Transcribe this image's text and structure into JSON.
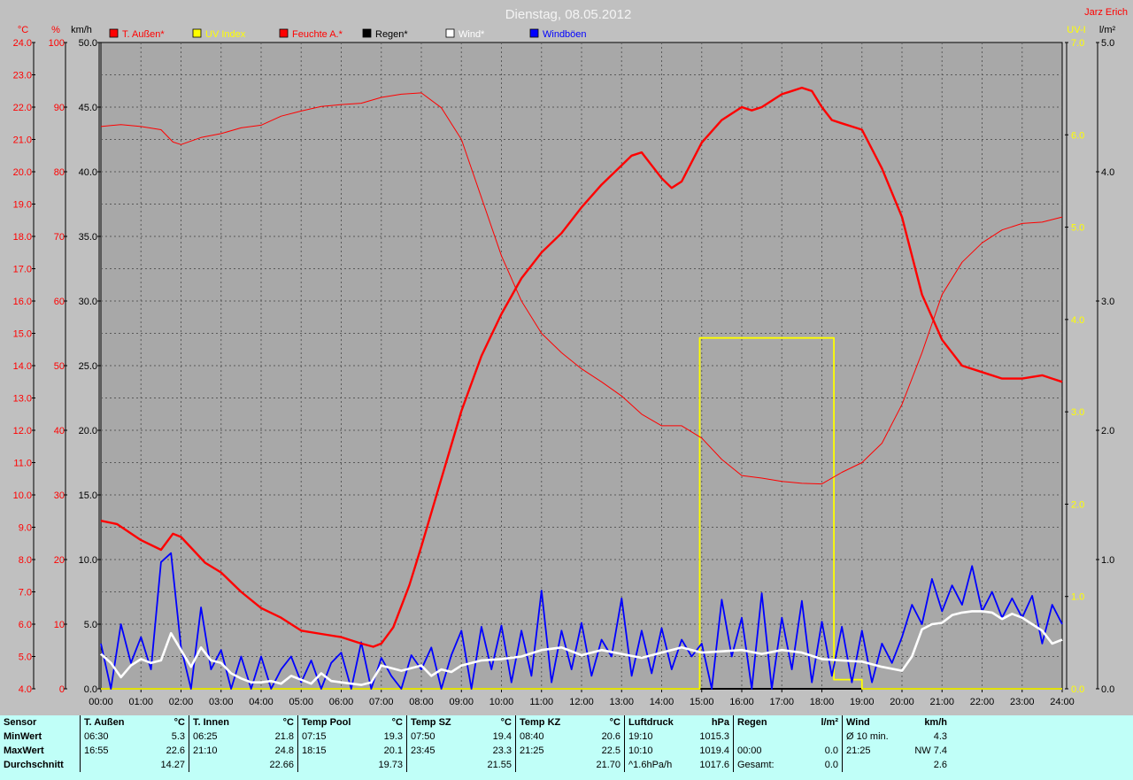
{
  "title": "Dienstag, 08.05.2012",
  "author": "Jarz Erich",
  "colors": {
    "background": "#c0c0c0",
    "plot_bg": "#a8a8a8",
    "red": "#ff0000",
    "yellow": "#ffff00",
    "blue": "#0000ff",
    "white": "#ffffff",
    "black": "#000000",
    "stats_bg": "#c0fff8"
  },
  "axes": {
    "temp": {
      "unit": "°C",
      "min": 4.0,
      "max": 24.0,
      "step": 1.0,
      "ticks": [
        "4.0",
        "5.0",
        "6.0",
        "7.0",
        "8.0",
        "9.0",
        "10.0",
        "11.0",
        "12.0",
        "13.0",
        "14.0",
        "15.0",
        "16.0",
        "17.0",
        "18.0",
        "19.0",
        "20.0",
        "21.0",
        "22.0",
        "23.0",
        "24.0"
      ]
    },
    "humidity": {
      "unit": "%",
      "min": 0,
      "max": 100,
      "step": 10,
      "ticks": [
        "0",
        "10",
        "20",
        "30",
        "40",
        "50",
        "60",
        "70",
        "80",
        "90",
        "100"
      ]
    },
    "wind": {
      "unit": "km/h",
      "min": 0,
      "max": 50,
      "step": 5,
      "ticks": [
        "0.0",
        "5.0",
        "10.0",
        "15.0",
        "20.0",
        "25.0",
        "30.0",
        "35.0",
        "40.0",
        "45.0",
        "50.0"
      ]
    },
    "uv": {
      "unit": "UV-I",
      "min": 0,
      "max": 7,
      "step": 1,
      "ticks": [
        "0.0",
        "1.0",
        "2.0",
        "3.0",
        "4.0",
        "5.0",
        "6.0",
        "7.0"
      ]
    },
    "rain": {
      "unit": "l/m²",
      "min": 0,
      "max": 5,
      "step": 1,
      "ticks": [
        "0.0",
        "1.0",
        "2.0",
        "3.0",
        "4.0",
        "5.0"
      ]
    },
    "time": {
      "ticks": [
        "00:00",
        "01:00",
        "02:00",
        "03:00",
        "04:00",
        "05:00",
        "06:00",
        "07:00",
        "08:00",
        "09:00",
        "10:00",
        "11:00",
        "12:00",
        "13:00",
        "14:00",
        "15:00",
        "16:00",
        "17:00",
        "18:00",
        "19:00",
        "20:00",
        "21:00",
        "22:00",
        "23:00",
        "24:00"
      ]
    }
  },
  "legend": [
    {
      "label": "T. Außen*",
      "color": "#ff0000"
    },
    {
      "label": "UV Index",
      "color": "#ffff00"
    },
    {
      "label": "Feuchte A.*",
      "color": "#ff0000"
    },
    {
      "label": "Regen*",
      "color": "#000000"
    },
    {
      "label": "Wind*",
      "color": "#ffffff"
    },
    {
      "label": "Windböen",
      "color": "#0000ff"
    }
  ],
  "chart_data": {
    "type": "line",
    "title": "Dienstag, 08.05.2012",
    "x_unit": "hour",
    "xlim": [
      0,
      24
    ],
    "series": [
      {
        "name": "T. Außen*",
        "axis": "temp",
        "color": "#ff0000",
        "x": [
          0,
          0.4,
          1.0,
          1.5,
          1.8,
          2.0,
          2.3,
          2.6,
          3.0,
          3.5,
          4.0,
          4.5,
          5.0,
          5.5,
          6.0,
          6.5,
          6.8,
          7.0,
          7.3,
          7.7,
          8.0,
          8.5,
          9.0,
          9.5,
          10.0,
          10.5,
          11.0,
          11.5,
          12.0,
          12.5,
          13.0,
          13.25,
          13.5,
          14.0,
          14.25,
          14.5,
          15.0,
          15.5,
          16.0,
          16.25,
          16.5,
          17.0,
          17.25,
          17.5,
          17.75,
          18.0,
          18.25,
          18.5,
          18.75,
          19.0,
          19.5,
          20.0,
          20.5,
          21.0,
          21.5,
          22.0,
          22.5,
          23.0,
          23.5,
          23.75,
          24.0
        ],
        "values": [
          9.2,
          9.1,
          8.6,
          8.3,
          8.8,
          8.7,
          8.3,
          7.9,
          7.6,
          7.0,
          6.5,
          6.2,
          5.8,
          5.7,
          5.6,
          5.4,
          5.3,
          5.4,
          5.9,
          7.2,
          8.4,
          10.5,
          12.6,
          14.3,
          15.6,
          16.7,
          17.5,
          18.1,
          18.9,
          19.6,
          20.2,
          20.5,
          20.6,
          19.8,
          19.5,
          19.7,
          20.9,
          21.6,
          22.0,
          21.9,
          22.0,
          22.4,
          22.5,
          22.6,
          22.5,
          22.0,
          21.6,
          21.5,
          21.4,
          21.3,
          20.1,
          18.6,
          16.2,
          14.8,
          14.0,
          13.8,
          13.6,
          13.6,
          13.7,
          13.6,
          13.5
        ]
      },
      {
        "name": "Feuchte A.*",
        "axis": "humidity",
        "color": "#ff0000",
        "x": [
          0,
          0.5,
          1.0,
          1.5,
          1.8,
          2.0,
          2.5,
          3.0,
          3.5,
          4.0,
          4.5,
          5.0,
          5.5,
          6.0,
          6.5,
          7.0,
          7.5,
          8.0,
          8.5,
          9.0,
          9.5,
          10.0,
          10.5,
          11.0,
          11.5,
          12.0,
          12.5,
          13.0,
          13.5,
          14.0,
          14.5,
          15.0,
          15.5,
          16.0,
          16.5,
          17.0,
          17.5,
          18.0,
          18.5,
          19.0,
          19.5,
          20.0,
          20.5,
          21.0,
          21.5,
          22.0,
          22.5,
          23.0,
          23.5,
          24.0
        ],
        "values": [
          87,
          87.3,
          87,
          86.5,
          84.6,
          84.2,
          85.3,
          85.9,
          86.8,
          87.2,
          88.6,
          89.4,
          90.1,
          90.4,
          90.6,
          91.5,
          92,
          92.2,
          89.9,
          85,
          76,
          67,
          60,
          55,
          52,
          49.5,
          47.5,
          45.3,
          42.5,
          40.7,
          40.7,
          38.8,
          35.5,
          33,
          32.6,
          32.1,
          31.8,
          31.7,
          33.5,
          35,
          38,
          44,
          52,
          61,
          66,
          69,
          71,
          72,
          72.2,
          73
        ]
      },
      {
        "name": "Wind*",
        "axis": "wind",
        "color": "#ffffff",
        "x": [
          0,
          0.25,
          0.5,
          0.75,
          1.0,
          1.25,
          1.5,
          1.75,
          2.0,
          2.25,
          2.5,
          2.75,
          3.0,
          3.25,
          3.5,
          3.75,
          4.0,
          4.25,
          4.5,
          4.75,
          5.0,
          5.25,
          5.5,
          5.75,
          6.0,
          6.25,
          6.5,
          6.75,
          7.0,
          7.25,
          7.5,
          7.75,
          8.0,
          8.25,
          8.5,
          8.75,
          9.0,
          9.5,
          10.0,
          10.5,
          11.0,
          11.5,
          12.0,
          12.5,
          13.0,
          13.5,
          14.0,
          14.5,
          15.0,
          15.5,
          16.0,
          16.5,
          17.0,
          17.5,
          18.0,
          18.5,
          19.0,
          19.5,
          20.0,
          20.25,
          20.5,
          20.75,
          21.0,
          21.25,
          21.5,
          21.75,
          22.0,
          22.25,
          22.5,
          22.75,
          23.0,
          23.25,
          23.5,
          23.75,
          24.0
        ],
        "values": [
          2.7,
          2.0,
          0.9,
          1.8,
          2.3,
          2.0,
          2.2,
          4.3,
          3.0,
          1.7,
          3.2,
          2.2,
          2.0,
          1.2,
          0.8,
          0.5,
          0.5,
          0.6,
          0.4,
          1.0,
          0.7,
          0.4,
          1.2,
          0.6,
          0.5,
          0.4,
          0.3,
          0.5,
          1.8,
          1.6,
          1.4,
          1.6,
          1.8,
          1.0,
          1.5,
          1.3,
          1.8,
          2.2,
          2.3,
          2.5,
          3.0,
          3.2,
          2.6,
          3.0,
          2.7,
          2.4,
          2.8,
          3.2,
          2.8,
          2.9,
          3.0,
          2.7,
          3.0,
          2.8,
          2.3,
          2.2,
          2.1,
          1.7,
          1.4,
          2.5,
          4.6,
          5.0,
          5.1,
          5.7,
          5.9,
          6.0,
          6.0,
          5.9,
          5.4,
          5.8,
          5.5,
          5.0,
          4.5,
          3.5,
          3.8
        ]
      },
      {
        "name": "Windböen",
        "axis": "wind",
        "color": "#0000ff",
        "x": [
          0,
          0.25,
          0.5,
          0.75,
          1.0,
          1.25,
          1.5,
          1.75,
          2.0,
          2.25,
          2.5,
          2.75,
          3.0,
          3.25,
          3.5,
          3.75,
          4.0,
          4.25,
          4.5,
          4.75,
          5.0,
          5.25,
          5.5,
          5.75,
          6.0,
          6.25,
          6.5,
          6.75,
          7.0,
          7.25,
          7.5,
          7.75,
          8.0,
          8.25,
          8.5,
          8.75,
          9.0,
          9.25,
          9.5,
          9.75,
          10.0,
          10.25,
          10.5,
          10.75,
          11.0,
          11.25,
          11.5,
          11.75,
          12.0,
          12.25,
          12.5,
          12.75,
          13.0,
          13.25,
          13.5,
          13.75,
          14.0,
          14.25,
          14.5,
          14.75,
          15.0,
          15.25,
          15.5,
          15.75,
          16.0,
          16.25,
          16.5,
          16.75,
          17.0,
          17.25,
          17.5,
          17.75,
          18.0,
          18.25,
          18.5,
          18.75,
          19.0,
          19.25,
          19.5,
          19.75,
          20.0,
          20.25,
          20.5,
          20.75,
          21.0,
          21.25,
          21.5,
          21.75,
          22.0,
          22.25,
          22.5,
          22.75,
          23.0,
          23.25,
          23.5,
          23.75,
          24.0
        ],
        "values": [
          3.5,
          0.0,
          5.0,
          2.0,
          4.0,
          1.5,
          9.8,
          10.5,
          3.2,
          0.0,
          6.3,
          1.5,
          3.0,
          0.0,
          2.5,
          0.0,
          2.5,
          0.0,
          1.5,
          2.5,
          0.5,
          2.2,
          0.0,
          2.0,
          2.8,
          0.0,
          3.6,
          0.0,
          2.4,
          1.0,
          0.0,
          2.6,
          1.5,
          3.2,
          0.0,
          2.6,
          4.5,
          0.0,
          4.8,
          1.5,
          4.9,
          0.5,
          4.5,
          1.0,
          7.6,
          0.5,
          4.5,
          1.5,
          5.1,
          1.0,
          3.8,
          2.5,
          7.0,
          1.0,
          4.5,
          1.2,
          4.7,
          1.5,
          3.8,
          2.5,
          3.5,
          0.0,
          6.9,
          2.5,
          5.5,
          0.0,
          7.4,
          0.0,
          5.5,
          1.5,
          6.8,
          0.5,
          5.2,
          1.0,
          4.8,
          0.5,
          4.5,
          0.5,
          3.5,
          2.0,
          4.0,
          6.5,
          5.0,
          8.5,
          6.0,
          8.0,
          6.5,
          9.5,
          6.0,
          7.5,
          5.5,
          7.0,
          5.5,
          7.2,
          3.5,
          6.5,
          5.0
        ]
      },
      {
        "name": "UV Index",
        "axis": "uv",
        "color": "#ffff00",
        "x": [
          0,
          14.95,
          14.95,
          18.3,
          18.3,
          19.0,
          19.0,
          24.0
        ],
        "values": [
          0,
          0,
          3.8,
          3.8,
          0.1,
          0.1,
          0,
          0
        ]
      },
      {
        "name": "Regen*",
        "axis": "rain",
        "color": "#000000",
        "x": [
          0,
          24
        ],
        "values": [
          0,
          0
        ]
      }
    ]
  },
  "stats": {
    "row_labels": [
      "Sensor",
      "MinWert",
      "MaxWert",
      "Durchschnitt"
    ],
    "blocks": [
      {
        "name": "T. Außen",
        "unit": "°C",
        "min_time": "06:30",
        "min_val": "5.3",
        "max_time": "16:55",
        "max_val": "22.6",
        "avg_label": "",
        "avg": "14.27"
      },
      {
        "name": "T. Innen",
        "unit": "°C",
        "min_time": "06:25",
        "min_val": "21.8",
        "max_time": "21:10",
        "max_val": "24.8",
        "avg_label": "",
        "avg": "22.66"
      },
      {
        "name": "Temp Pool",
        "unit": "°C",
        "min_time": "07:15",
        "min_val": "19.3",
        "max_time": "18:15",
        "max_val": "20.1",
        "avg_label": "",
        "avg": "19.73"
      },
      {
        "name": "Temp SZ",
        "unit": "°C",
        "min_time": "07:50",
        "min_val": "19.4",
        "max_time": "23:45",
        "max_val": "23.3",
        "avg_label": "",
        "avg": "21.55"
      },
      {
        "name": "Temp KZ",
        "unit": "°C",
        "min_time": "08:40",
        "min_val": "20.6",
        "max_time": "21:25",
        "max_val": "22.5",
        "avg_label": "",
        "avg": "21.70"
      },
      {
        "name": "Luftdruck",
        "unit": "hPa",
        "min_time": "19:10",
        "min_val": "1015.3",
        "max_time": "10:10",
        "max_val": "1019.4",
        "avg_label": "^1.6hPa/h",
        "avg": "1017.6"
      },
      {
        "name": "Regen",
        "unit": "l/m²",
        "min_time": "",
        "min_val": "",
        "max_time": "00:00",
        "max_val": "0.0",
        "avg_label": "Gesamt:",
        "avg": "0.0"
      },
      {
        "name": "Wind",
        "unit": "km/h",
        "min_time": "Ø 10 min.",
        "min_val": "4.3",
        "max_time": "21:25",
        "max_val": "NW 7.4",
        "avg_label": "",
        "avg": "2.6"
      }
    ]
  }
}
